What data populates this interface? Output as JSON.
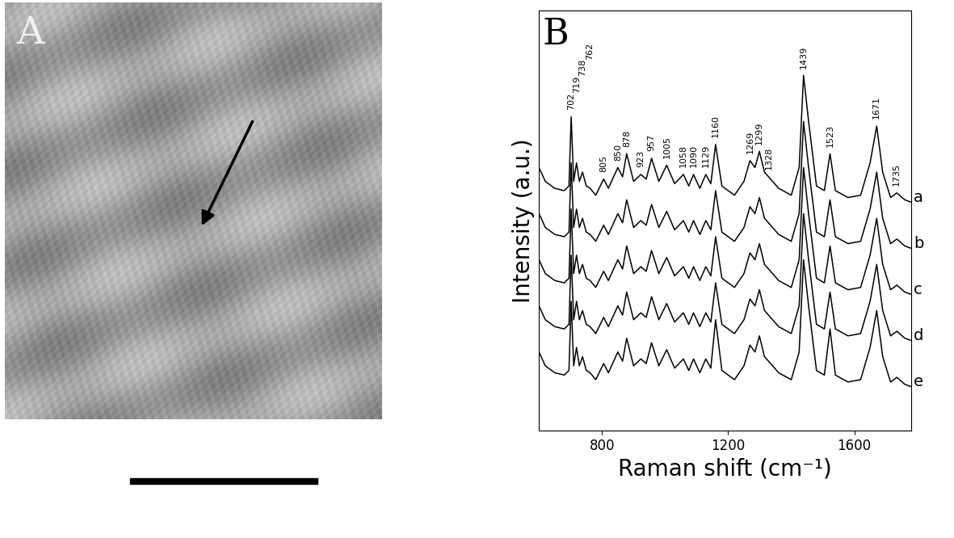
{
  "image_panel": {
    "label": "A"
  },
  "chart_data": {
    "type": "line",
    "panel_label": "B",
    "xlabel": "Raman shift (cm⁻¹)",
    "ylabel": "Intensity (a.u.)",
    "xlim": [
      600,
      1780
    ],
    "xticks": [
      800,
      1200,
      1600
    ],
    "ylim": [
      1.5,
      10.6
    ],
    "yticks": [],
    "tick_labels": "x",
    "grid": false,
    "x": [
      600,
      620,
      650,
      680,
      695,
      702,
      710,
      719,
      728,
      738,
      750,
      762,
      780,
      805,
      820,
      850,
      865,
      878,
      900,
      923,
      940,
      957,
      980,
      1005,
      1030,
      1058,
      1075,
      1090,
      1110,
      1129,
      1145,
      1160,
      1180,
      1220,
      1250,
      1269,
      1285,
      1299,
      1315,
      1328,
      1360,
      1400,
      1425,
      1439,
      1455,
      1480,
      1505,
      1523,
      1540,
      1580,
      1620,
      1650,
      1671,
      1690,
      1715,
      1735,
      1760,
      1780
    ],
    "series": [
      {
        "name": "a",
        "color": "#000000",
        "values": [
          7.2,
          6.9,
          6.75,
          6.7,
          6.8,
          8.3,
          6.9,
          7.3,
          6.9,
          7.1,
          6.8,
          6.75,
          6.6,
          6.95,
          6.75,
          7.2,
          7.0,
          7.5,
          6.9,
          7.05,
          6.95,
          7.4,
          6.9,
          7.25,
          6.85,
          7.05,
          6.8,
          7.05,
          6.75,
          7.05,
          6.85,
          7.7,
          6.8,
          6.6,
          6.9,
          7.35,
          7.2,
          7.55,
          7.1,
          7.0,
          6.75,
          6.6,
          7.2,
          9.2,
          8.2,
          6.8,
          6.7,
          7.5,
          6.7,
          6.55,
          6.6,
          7.3,
          8.1,
          7.1,
          6.55,
          6.65,
          6.5,
          6.45
        ]
      },
      {
        "name": "b",
        "color": "#000000",
        "values": [
          6.2,
          5.9,
          5.75,
          5.7,
          5.8,
          7.3,
          5.9,
          6.3,
          5.9,
          6.1,
          5.8,
          5.75,
          5.6,
          5.95,
          5.75,
          6.2,
          6.0,
          6.5,
          5.9,
          6.05,
          5.95,
          6.4,
          5.9,
          6.25,
          5.85,
          6.05,
          5.8,
          6.05,
          5.75,
          6.05,
          5.85,
          6.7,
          5.8,
          5.6,
          5.9,
          6.35,
          6.2,
          6.55,
          6.1,
          6.0,
          5.75,
          5.6,
          6.2,
          8.2,
          7.2,
          5.8,
          5.7,
          6.5,
          5.7,
          5.55,
          5.6,
          6.3,
          7.1,
          6.1,
          5.55,
          5.65,
          5.5,
          5.45
        ]
      },
      {
        "name": "c",
        "color": "#000000",
        "values": [
          5.2,
          4.9,
          4.75,
          4.7,
          4.8,
          6.3,
          4.9,
          5.3,
          4.9,
          5.1,
          4.8,
          4.75,
          4.6,
          4.95,
          4.75,
          5.2,
          5.0,
          5.5,
          4.9,
          5.05,
          4.95,
          5.4,
          4.9,
          5.25,
          4.85,
          5.05,
          4.8,
          5.05,
          4.75,
          5.05,
          4.85,
          5.7,
          4.8,
          4.6,
          4.9,
          5.35,
          5.2,
          5.55,
          5.1,
          5.0,
          4.75,
          4.6,
          5.2,
          7.2,
          6.2,
          4.8,
          4.7,
          5.5,
          4.7,
          4.55,
          4.6,
          5.3,
          6.1,
          5.1,
          4.55,
          4.65,
          4.5,
          4.45
        ]
      },
      {
        "name": "d",
        "color": "#000000",
        "values": [
          4.2,
          3.9,
          3.75,
          3.7,
          3.8,
          5.3,
          3.9,
          4.3,
          3.9,
          4.1,
          3.8,
          3.75,
          3.6,
          3.95,
          3.75,
          4.2,
          4.0,
          4.5,
          3.9,
          4.05,
          3.95,
          4.4,
          3.9,
          4.25,
          3.85,
          4.05,
          3.8,
          4.05,
          3.75,
          4.05,
          3.85,
          4.7,
          3.8,
          3.6,
          3.9,
          4.35,
          4.2,
          4.55,
          4.1,
          4.0,
          3.75,
          3.6,
          4.2,
          6.2,
          5.2,
          3.8,
          3.7,
          4.5,
          3.7,
          3.55,
          3.6,
          4.3,
          5.1,
          4.1,
          3.55,
          3.65,
          3.5,
          3.45
        ]
      },
      {
        "name": "e",
        "color": "#000000",
        "values": [
          3.2,
          2.9,
          2.75,
          2.7,
          2.8,
          4.3,
          2.9,
          3.3,
          2.9,
          3.1,
          2.8,
          2.75,
          2.6,
          2.95,
          2.75,
          3.2,
          3.0,
          3.5,
          2.9,
          3.05,
          2.95,
          3.4,
          2.9,
          3.25,
          2.85,
          3.05,
          2.8,
          3.05,
          2.75,
          3.05,
          2.85,
          3.9,
          2.8,
          2.6,
          2.9,
          3.35,
          3.2,
          3.55,
          3.1,
          3.0,
          2.75,
          2.6,
          3.2,
          5.2,
          4.2,
          2.8,
          2.7,
          3.7,
          2.7,
          2.55,
          2.6,
          3.3,
          4.1,
          3.1,
          2.55,
          2.65,
          2.5,
          2.45
        ]
      }
    ],
    "annotations": [
      702,
      719,
      738,
      762,
      805,
      850,
      878,
      923,
      957,
      1005,
      1058,
      1090,
      1129,
      1160,
      1269,
      1299,
      1328,
      1439,
      1523,
      1671,
      1735
    ]
  }
}
